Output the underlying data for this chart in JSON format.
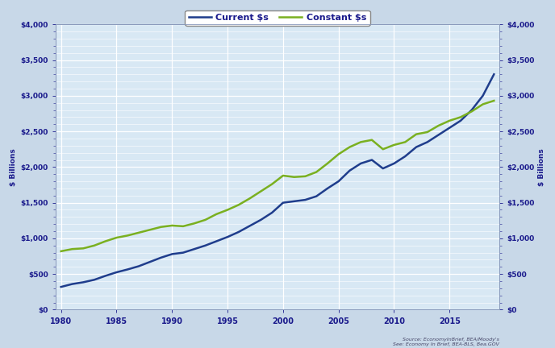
{
  "years": [
    1980,
    1981,
    1982,
    1983,
    1984,
    1985,
    1986,
    1987,
    1988,
    1989,
    1990,
    1991,
    1992,
    1993,
    1994,
    1995,
    1996,
    1997,
    1998,
    1999,
    2000,
    2001,
    2002,
    2003,
    2004,
    2005,
    2006,
    2007,
    2008,
    2009,
    2010,
    2011,
    2012,
    2013,
    2014,
    2015,
    2016,
    2017,
    2018,
    2019
  ],
  "current_dollars": [
    320,
    360,
    385,
    420,
    475,
    525,
    565,
    610,
    670,
    730,
    780,
    800,
    850,
    900,
    960,
    1020,
    1090,
    1175,
    1260,
    1360,
    1500,
    1520,
    1540,
    1590,
    1700,
    1800,
    1950,
    2050,
    2100,
    1980,
    2050,
    2150,
    2280,
    2350,
    2450,
    2550,
    2650,
    2800,
    3000,
    3300
  ],
  "constant_dollars": [
    820,
    850,
    860,
    900,
    960,
    1010,
    1040,
    1080,
    1120,
    1160,
    1180,
    1170,
    1210,
    1260,
    1340,
    1400,
    1470,
    1560,
    1660,
    1760,
    1880,
    1860,
    1870,
    1930,
    2050,
    2180,
    2280,
    2350,
    2380,
    2250,
    2310,
    2350,
    2460,
    2490,
    2580,
    2650,
    2700,
    2780,
    2880,
    2930
  ],
  "current_color": "#1f3d8c",
  "constant_color": "#7ab020",
  "bg_color": "#c8d8e8",
  "plot_bg_color": "#d8e8f4",
  "grid_color": "#ffffff",
  "legend_labels": [
    "Current $s",
    "Constant $s"
  ],
  "ylabel_left": "$ Billions",
  "ylabel_right": "$ Billions",
  "ylim": [
    0,
    4000
  ],
  "yticks": [
    0,
    500,
    1000,
    1500,
    2000,
    2500,
    3000,
    3500,
    4000
  ],
  "ytick_labels": [
    "$0",
    "$500",
    "$1,000",
    "$1,500",
    "$2,000",
    "$2,500",
    "$3,000",
    "$3,500",
    "$4,000"
  ],
  "xticks": [
    1980,
    1985,
    1990,
    1995,
    2000,
    2005,
    2010,
    2015
  ],
  "xlim": [
    1979.5,
    2019.5
  ],
  "source_text": "Source: EconomyInBrief, BEA/Moody's\nSee: Economy In Brief, BEA-BLS, Bea.GOV"
}
